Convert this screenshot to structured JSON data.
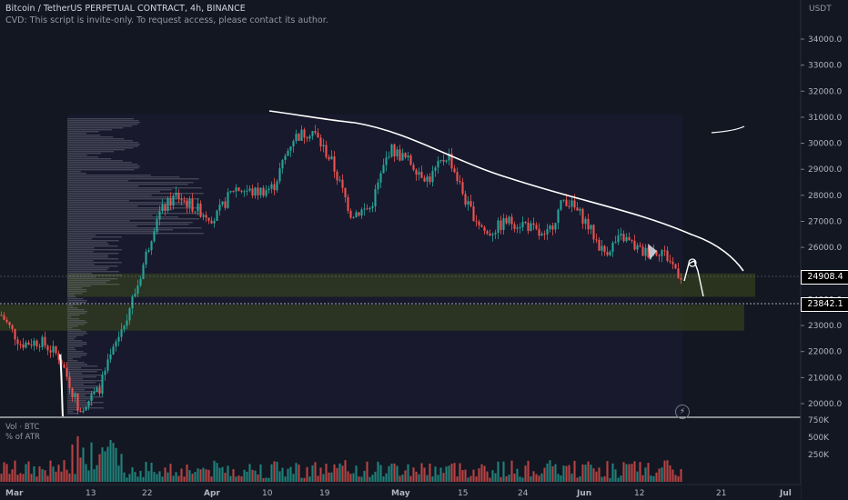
{
  "header": {
    "symbol_line": "Bitcoin / TetherUS PERPETUAL CONTRACT, 4h, BINANCE",
    "script_notice": "CVD: This script is invite-only. To request access, please contact its author."
  },
  "currency": "USDT",
  "price_axis": {
    "ticks": [
      "34000.0",
      "33000.0",
      "32000.0",
      "31000.0",
      "30000.0",
      "29000.0",
      "28000.0",
      "27000.0",
      "26000.0",
      "25000.0",
      "24000.0",
      "23000.0",
      "22000.0",
      "21000.0",
      "20000.0"
    ],
    "tick_values": [
      34000,
      33000,
      32000,
      31000,
      30000,
      29000,
      28000,
      27000,
      26000,
      25000,
      24000,
      23000,
      22000,
      21000,
      20000
    ],
    "current_price_label": "24908.4",
    "crosshair_price_label": "23842.1"
  },
  "volume_pane": {
    "title": "Vol · BTC",
    "subtitle": "% of ATR",
    "ticks": [
      "750K",
      "500K",
      "250K"
    ],
    "tick_values": [
      750000,
      500000,
      250000
    ]
  },
  "time_axis": {
    "labels": [
      "Mar",
      "13",
      "22",
      "Apr",
      "10",
      "19",
      "May",
      "15",
      "24",
      "Jun",
      "12",
      "21",
      "Jul"
    ]
  },
  "colors": {
    "up": "#26a69a",
    "down": "#ef5350",
    "background": "#131722",
    "zone": "#3d4a1c",
    "drawing": "#ffffff"
  },
  "chart_data": {
    "type": "candlestick",
    "symbol": "BTCUSDT.P",
    "interval": "4h",
    "approx_path": [
      {
        "date": "Mar 01",
        "price": 23400
      },
      {
        "date": "Mar 03",
        "price": 22300
      },
      {
        "date": "Mar 06",
        "price": 22400
      },
      {
        "date": "Mar 09",
        "price": 21800
      },
      {
        "date": "Mar 10",
        "price": 19800
      },
      {
        "date": "Mar 12",
        "price": 20500
      },
      {
        "date": "Mar 13",
        "price": 22500
      },
      {
        "date": "Mar 15",
        "price": 24500
      },
      {
        "date": "Mar 18",
        "price": 27200
      },
      {
        "date": "Mar 20",
        "price": 28000
      },
      {
        "date": "Mar 24",
        "price": 27500
      },
      {
        "date": "Mar 28",
        "price": 27100
      },
      {
        "date": "Apr 01",
        "price": 28300
      },
      {
        "date": "Apr 05",
        "price": 28100
      },
      {
        "date": "Apr 09",
        "price": 28300
      },
      {
        "date": "Apr 11",
        "price": 30200
      },
      {
        "date": "Apr 14",
        "price": 30500
      },
      {
        "date": "Apr 18",
        "price": 29300
      },
      {
        "date": "Apr 21",
        "price": 27300
      },
      {
        "date": "Apr 24",
        "price": 27500
      },
      {
        "date": "Apr 26",
        "price": 29800
      },
      {
        "date": "Apr 30",
        "price": 29300
      },
      {
        "date": "May 02",
        "price": 28600
      },
      {
        "date": "May 06",
        "price": 29600
      },
      {
        "date": "May 09",
        "price": 27600
      },
      {
        "date": "May 12",
        "price": 26500
      },
      {
        "date": "May 15",
        "price": 27000
      },
      {
        "date": "May 20",
        "price": 26900
      },
      {
        "date": "May 25",
        "price": 26300
      },
      {
        "date": "May 29",
        "price": 27900
      },
      {
        "date": "Jun 02",
        "price": 27100
      },
      {
        "date": "Jun 05",
        "price": 25800
      },
      {
        "date": "Jun 07",
        "price": 26400
      },
      {
        "date": "Jun 10",
        "price": 25800
      },
      {
        "date": "Jun 13",
        "price": 25900
      },
      {
        "date": "Jun 15",
        "price": 24908
      }
    ],
    "zones": [
      {
        "from": 24100,
        "to": 25000
      },
      {
        "from": 22800,
        "to": 23800
      }
    ],
    "grid": false
  }
}
